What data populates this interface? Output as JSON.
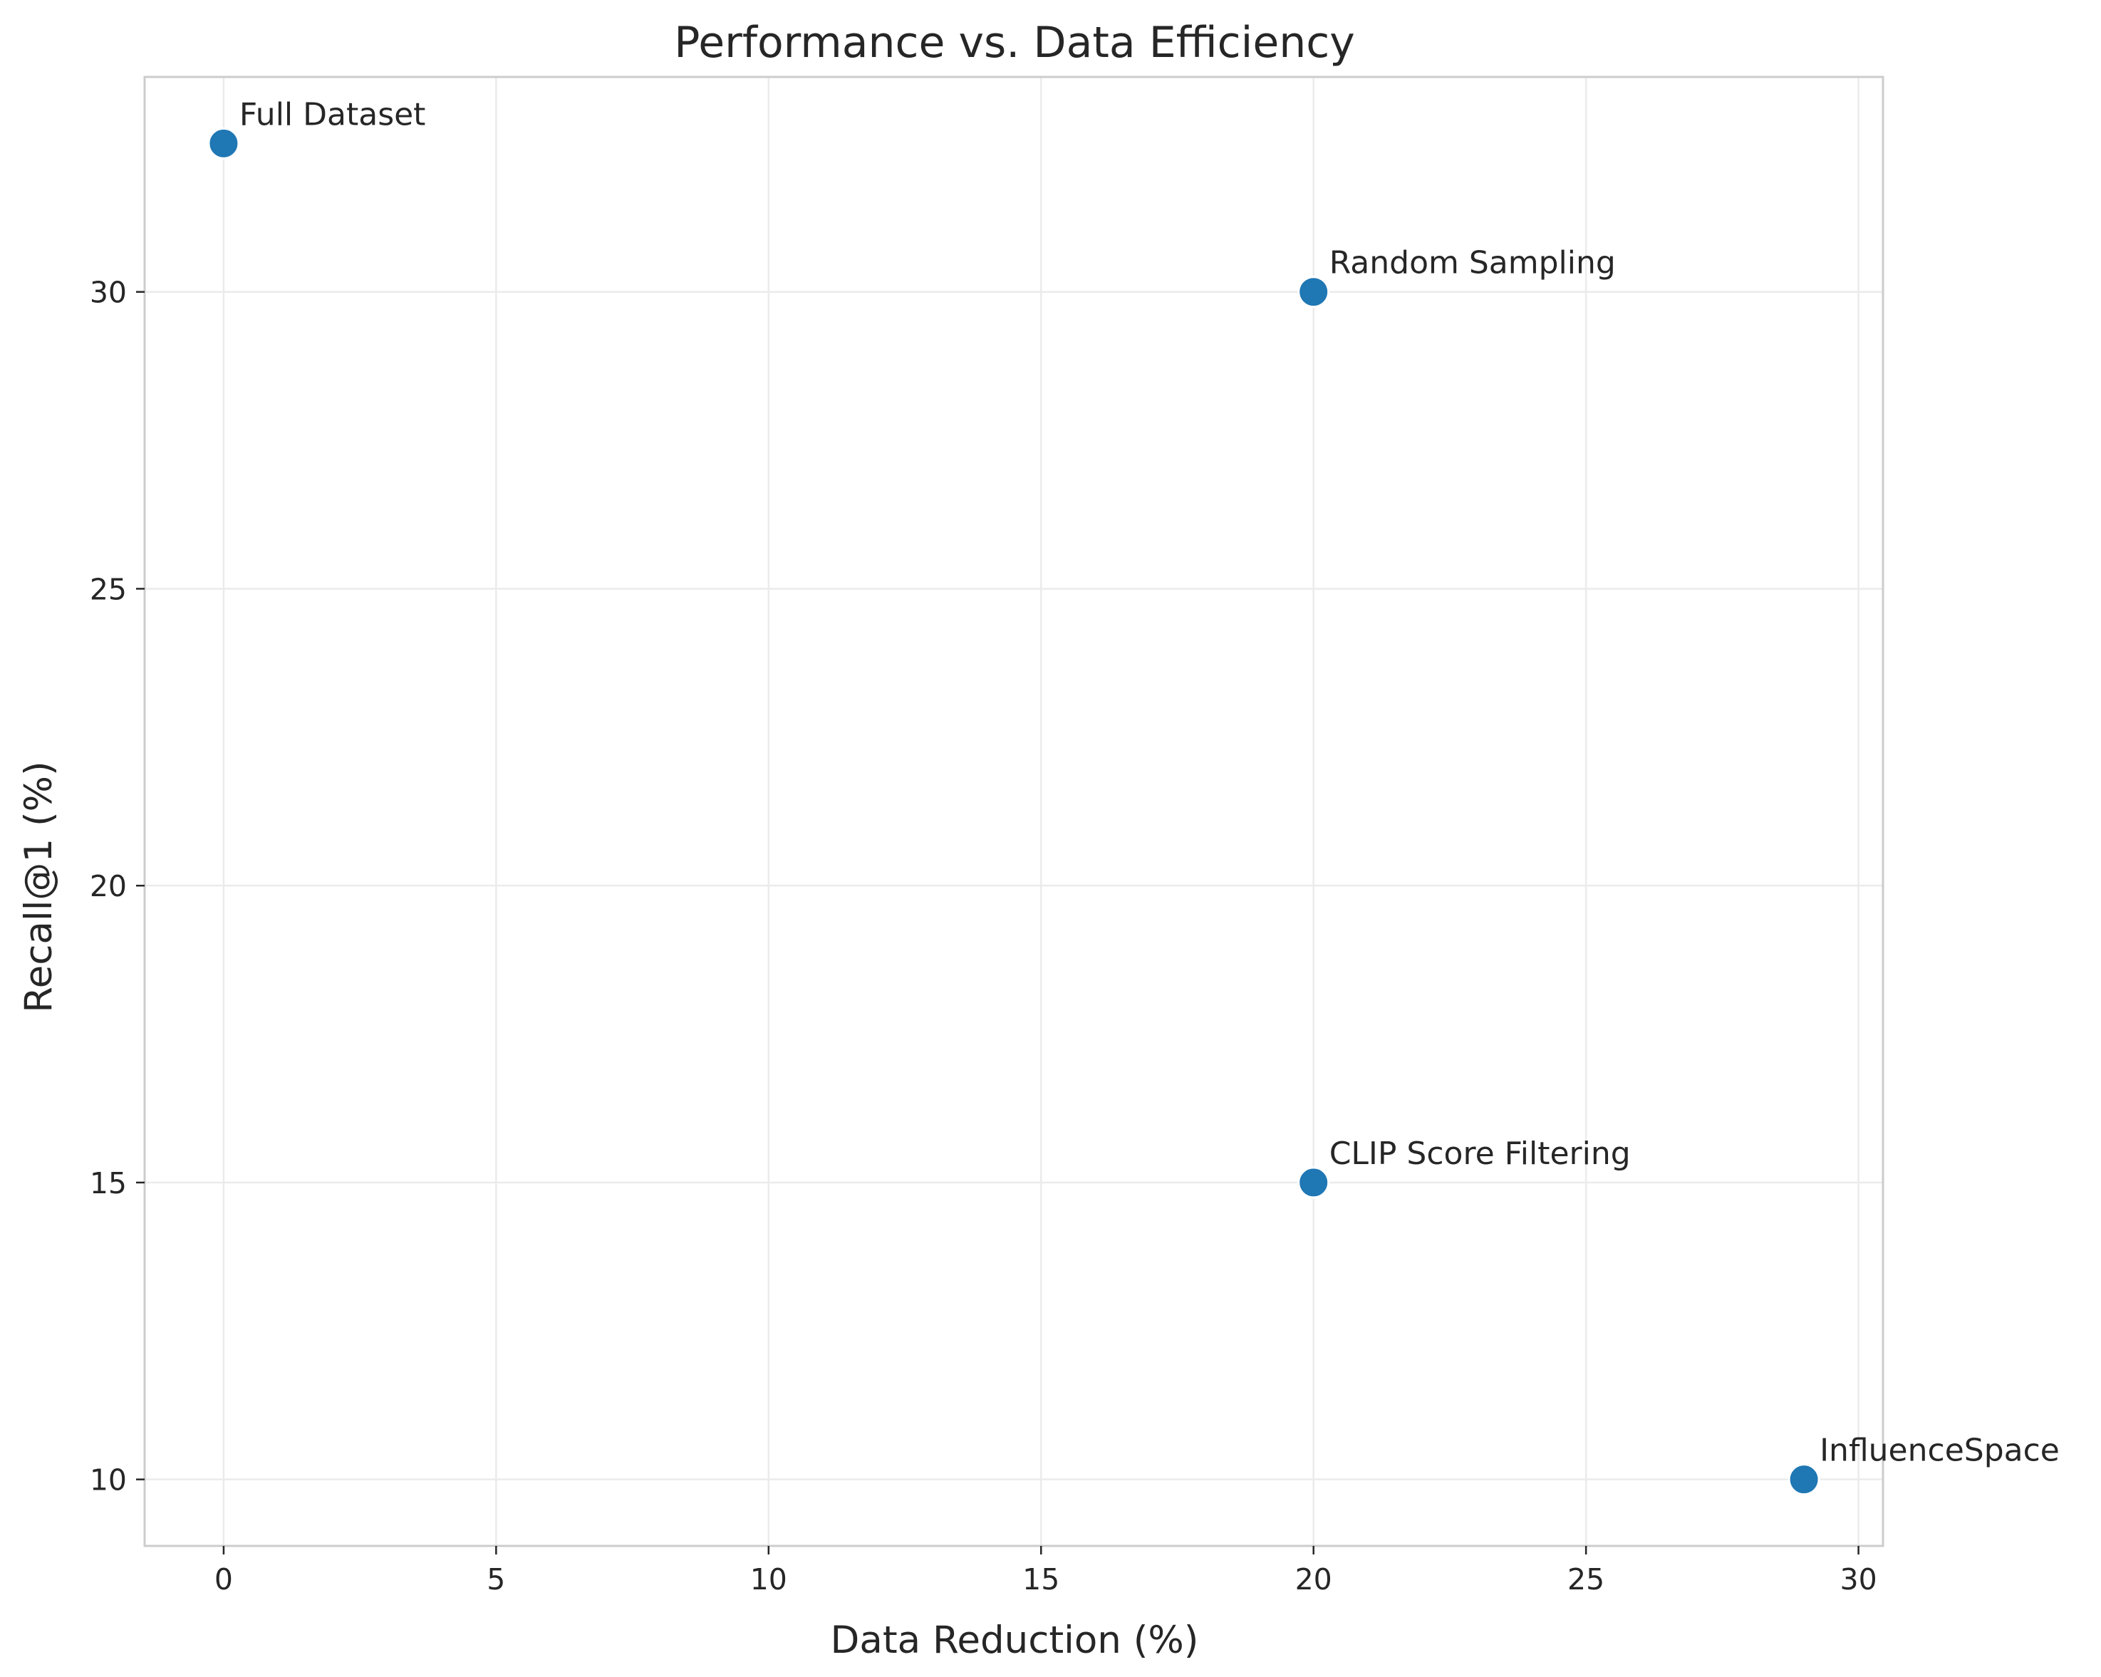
{
  "chart_data": {
    "type": "scatter",
    "title": "Performance vs. Data Efficiency",
    "xlabel": "Data Reduction (%)",
    "ylabel": "Recall@1 (%)",
    "xlim": [
      -1.45,
      30.45
    ],
    "ylim": [
      8.88,
      33.62
    ],
    "xticks": [
      0,
      5,
      10,
      15,
      20,
      25,
      30
    ],
    "yticks": [
      10,
      15,
      20,
      25,
      30
    ],
    "grid": true,
    "marker_color": "#1f77b4",
    "points": [
      {
        "label": "Full Dataset",
        "x": 0,
        "y": 32.5
      },
      {
        "label": "Random Sampling",
        "x": 20,
        "y": 30
      },
      {
        "label": "CLIP Score Filtering",
        "x": 20,
        "y": 15
      },
      {
        "label": "InfluenceSpace",
        "x": 29,
        "y": 10
      }
    ]
  },
  "colors": {
    "grid": "#ebebeb",
    "spine": "#cccccc",
    "text": "#262626",
    "marker": "#1f77b4"
  }
}
